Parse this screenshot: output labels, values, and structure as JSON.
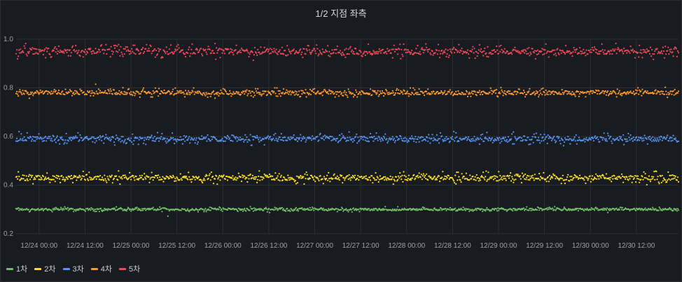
{
  "chart_data": {
    "type": "scatter",
    "title": "1/2 지점 좌측",
    "xlabel": "",
    "ylabel": "",
    "ylim": [
      0.2,
      1.0
    ],
    "yticks": [
      "0.2",
      "0.4",
      "0.6",
      "0.8",
      "1.0"
    ],
    "xlim": [
      "12/23 18:00",
      "12/30 23:00"
    ],
    "xticks": [
      "12/24 00:00",
      "12/24 12:00",
      "12/25 00:00",
      "12/25 12:00",
      "12/26 00:00",
      "12/26 12:00",
      "12/27 00:00",
      "12/27 12:00",
      "12/28 00:00",
      "12/28 12:00",
      "12/29 00:00",
      "12/29 12:00",
      "12/30 00:00",
      "12/30 12:00"
    ],
    "grid": true,
    "legend": "bottom-left",
    "series": [
      {
        "name": "1차",
        "color": "#73bf69",
        "mean": 0.3,
        "spread": 0.004,
        "values_sample": [
          [
            "12/24 00:00",
            0.3
          ],
          [
            "12/25 00:00",
            0.3
          ],
          [
            "12/26 00:00",
            0.3
          ],
          [
            "12/27 00:00",
            0.3
          ],
          [
            "12/28 00:00",
            0.3
          ],
          [
            "12/29 00:00",
            0.3
          ],
          [
            "12/30 00:00",
            0.305
          ],
          [
            "12/30 12:00",
            0.305
          ]
        ]
      },
      {
        "name": "2차",
        "color": "#fade2a",
        "mean": 0.43,
        "spread": 0.01,
        "values_sample": [
          [
            "12/24 00:00",
            0.43
          ],
          [
            "12/25 00:00",
            0.425
          ],
          [
            "12/25 12:00",
            0.415
          ],
          [
            "12/26 00:00",
            0.435
          ],
          [
            "12/27 00:00",
            0.42
          ],
          [
            "12/28 00:00",
            0.44
          ],
          [
            "12/29 00:00",
            0.43
          ],
          [
            "12/30 00:00",
            0.43
          ]
        ]
      },
      {
        "name": "3차",
        "color": "#5794f2",
        "mean": 0.59,
        "spread": 0.01,
        "values_sample": [
          [
            "12/24 00:00",
            0.59
          ],
          [
            "12/25 00:00",
            0.6
          ],
          [
            "12/26 00:00",
            0.6
          ],
          [
            "12/27 00:00",
            0.6
          ],
          [
            "12/28 00:00",
            0.605
          ],
          [
            "12/29 00:00",
            0.6
          ],
          [
            "12/30 00:00",
            0.61
          ]
        ]
      },
      {
        "name": "4차",
        "color": "#ff9830",
        "mean": 0.78,
        "spread": 0.008,
        "values_sample": [
          [
            "12/24 00:00",
            0.78
          ],
          [
            "12/25 00:00",
            0.78
          ],
          [
            "12/26 00:00",
            0.785
          ],
          [
            "12/27 00:00",
            0.78
          ],
          [
            "12/28 00:00",
            0.78
          ],
          [
            "12/29 00:00",
            0.785
          ],
          [
            "12/30 00:00",
            0.785
          ]
        ]
      },
      {
        "name": "5차",
        "color": "#f2495c",
        "mean": 0.95,
        "spread": 0.012,
        "values_sample": [
          [
            "12/24 00:00",
            0.96
          ],
          [
            "12/25 00:00",
            0.95
          ],
          [
            "12/26 00:00",
            0.955
          ],
          [
            "12/27 00:00",
            0.96
          ],
          [
            "12/28 00:00",
            0.94
          ],
          [
            "12/29 00:00",
            0.955
          ],
          [
            "12/30 00:00",
            0.95
          ]
        ]
      }
    ]
  },
  "legend": {
    "items": [
      {
        "label": "1차",
        "color": "#73bf69"
      },
      {
        "label": "2차",
        "color": "#fade2a"
      },
      {
        "label": "3차",
        "color": "#5794f2"
      },
      {
        "label": "4차",
        "color": "#ff9830"
      },
      {
        "label": "5차",
        "color": "#f2495c"
      }
    ]
  }
}
